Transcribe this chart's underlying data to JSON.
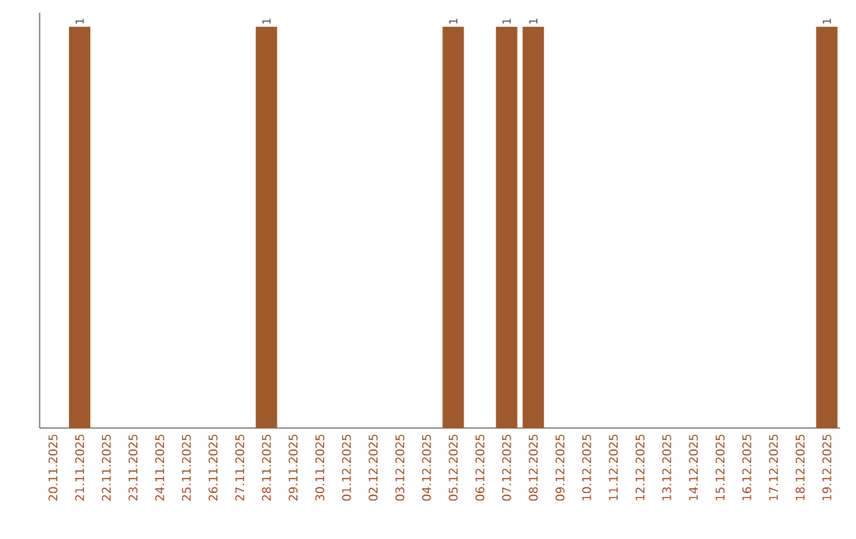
{
  "chart_data": {
    "type": "bar",
    "categories": [
      "20.11.2025",
      "21.11.2025",
      "22.11.2025",
      "23.11.2025",
      "24.11.2025",
      "25.11.2025",
      "26.11.2025",
      "27.11.2025",
      "28.11.2025",
      "29.11.2025",
      "30.11.2025",
      "01.12.2025",
      "02.12.2025",
      "03.12.2025",
      "04.12.2025",
      "05.12.2025",
      "06.12.2025",
      "07.12.2025",
      "08.12.2025",
      "09.12.2025",
      "10.12.2025",
      "11.12.2025",
      "12.12.2025",
      "13.12.2025",
      "14.12.2025",
      "15.12.2025",
      "16.12.2025",
      "17.12.2025",
      "18.12.2025",
      "19.12.2025"
    ],
    "values": [
      0,
      1,
      0,
      0,
      0,
      0,
      0,
      0,
      1,
      0,
      0,
      0,
      0,
      0,
      0,
      1,
      0,
      1,
      1,
      0,
      0,
      0,
      0,
      0,
      0,
      0,
      0,
      0,
      0,
      1
    ],
    "value_labels": [
      null,
      "1",
      null,
      null,
      null,
      null,
      null,
      null,
      "1",
      null,
      null,
      null,
      null,
      null,
      null,
      "1",
      null,
      "1",
      "1",
      null,
      null,
      null,
      null,
      null,
      null,
      null,
      null,
      null,
      null,
      "1"
    ],
    "color": "#a0592a",
    "ylim": [
      0,
      1
    ],
    "tick_labels": "x"
  }
}
